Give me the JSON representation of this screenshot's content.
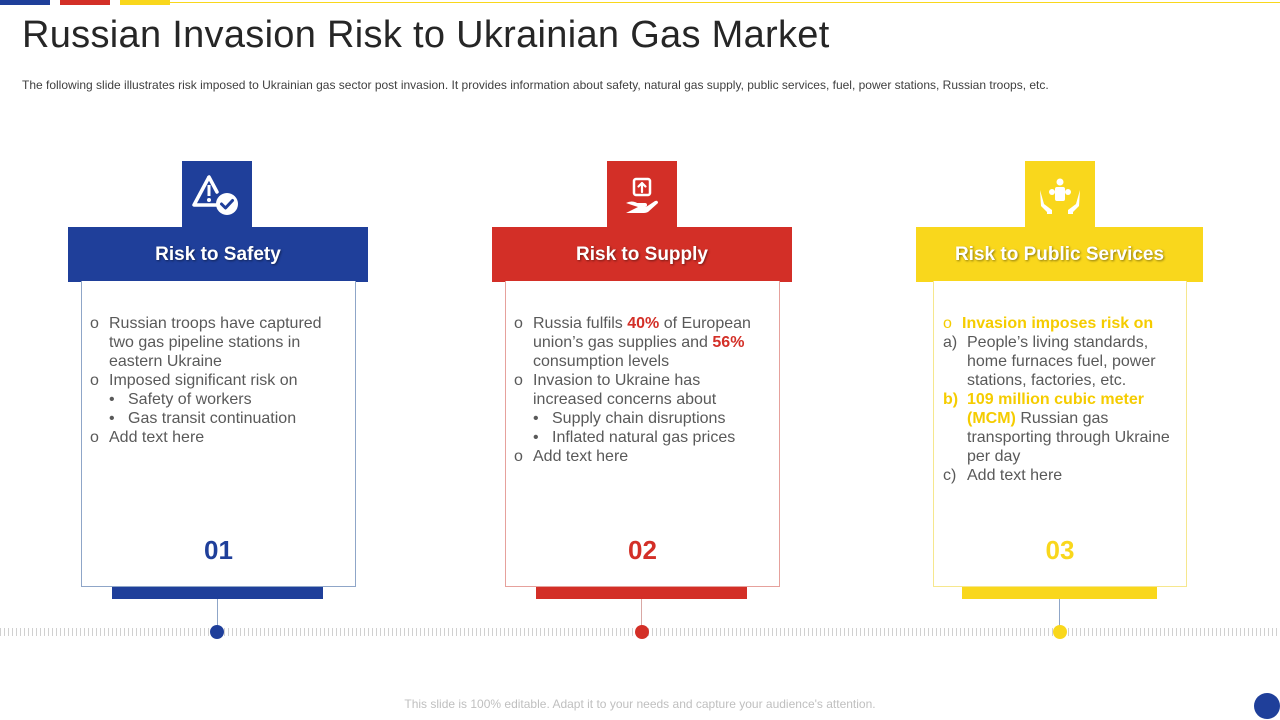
{
  "colors": {
    "blue": "#1f3f9a",
    "red": "#d32f27",
    "yellow": "#f9d71c"
  },
  "title": "Russian Invasion Risk to Ukrainian Gas Market",
  "subtitle": "The following  slide illustrates risk imposed to Ukrainian gas sector post invasion.  It provides  information  about safety, natural  gas supply, public services, fuel, power stations, Russian troops, etc.",
  "cards": [
    {
      "icon": "warning-check-icon",
      "header": "Risk to Safety",
      "number": "01",
      "items": [
        {
          "marker": "o",
          "text": "Russian troops have captured two gas pipeline stations in eastern Ukraine"
        },
        {
          "marker": "o",
          "text": "Imposed significant risk on"
        },
        {
          "marker": "•",
          "text": "Safety of workers"
        },
        {
          "marker": "•",
          "text": "Gas transit continuation"
        },
        {
          "marker": "o",
          "text": "Add text here"
        }
      ]
    },
    {
      "icon": "hand-upload-icon",
      "header": "Risk to Supply",
      "number": "02",
      "items": [
        {
          "marker": "o",
          "pre": "Russia fulfils ",
          "hl1": "40%",
          "mid": " of European union’s gas supplies and ",
          "hl2": "56%",
          "post": " consumption levels"
        },
        {
          "marker": "o",
          "text": "Invasion to Ukraine has increased concerns about"
        },
        {
          "marker": "•",
          "text": "Supply chain disruptions"
        },
        {
          "marker": "•",
          "text": "Inflated natural gas prices"
        },
        {
          "marker": "o",
          "text": "Add text here"
        }
      ]
    },
    {
      "icon": "people-protection-icon",
      "header": "Risk to Public Services",
      "number": "03",
      "items": [
        {
          "marker": "o",
          "text": "Invasion imposes risk on"
        },
        {
          "marker": "a)",
          "text": "People’s living standards, home furnaces fuel, power stations, factories, etc."
        },
        {
          "marker": "b)",
          "hl": "109 million cubic meter (MCM)",
          "text": " Russian gas transporting through Ukraine per day"
        },
        {
          "marker": "c)",
          "text": "Add text here"
        }
      ]
    }
  ],
  "footer": "This slide is 100% editable. Adapt it to your needs and capture your audience's attention."
}
